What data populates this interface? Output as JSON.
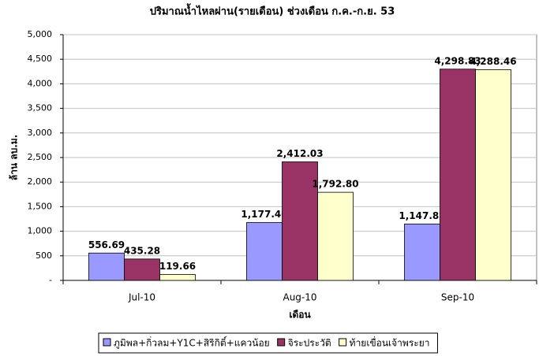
{
  "chart_data": {
    "type": "bar",
    "title": "ปริมาณน้ำไหลผ่าน(รายเดือน) ช่วงเดือน ก.ค.-ก.ย. 53",
    "y_label": "ล้าน ลบ.ม.",
    "x_label": "เดือน",
    "categories": [
      "Jul-10",
      "Aug-10",
      "Sep-10"
    ],
    "series": [
      {
        "name": "ภูมิพล+กิ่วลม+Y1C+สิริกิติ์+แควน้อย",
        "color": "#9999ff",
        "values": [
          556.69,
          1177.4,
          1147.82
        ],
        "value_labels": [
          "556.69",
          "1,177.40",
          "1,147.82"
        ]
      },
      {
        "name": "จิระประวัติ",
        "color": "#993366",
        "values": [
          435.28,
          2412.03,
          4298.83
        ],
        "value_labels": [
          "435.28",
          "2,412.03",
          "4,298.83"
        ]
      },
      {
        "name": "ท้ายเขื่อนเจ้าพระยา",
        "color": "#ffffcc",
        "values": [
          119.66,
          1792.8,
          4288.46
        ],
        "value_labels": [
          "119.66",
          "1,792.80",
          "4,288.46"
        ]
      }
    ],
    "ylim": [
      0,
      5000
    ],
    "yticks": [
      {
        "value": 0,
        "label": "-"
      },
      500,
      {
        "value": 1000,
        "label": "1,000"
      },
      {
        "value": 1500,
        "label": "1,500"
      },
      {
        "value": 2000,
        "label": "2,000"
      },
      {
        "value": 2500,
        "label": "2,500"
      },
      {
        "value": 3000,
        "label": "3,000"
      },
      {
        "value": 3500,
        "label": "3,500"
      },
      {
        "value": 4000,
        "label": "4,000"
      },
      {
        "value": 4500,
        "label": "4,500"
      },
      {
        "value": 5000,
        "label": "5,000"
      }
    ],
    "grid": true,
    "legend": "bottom"
  }
}
